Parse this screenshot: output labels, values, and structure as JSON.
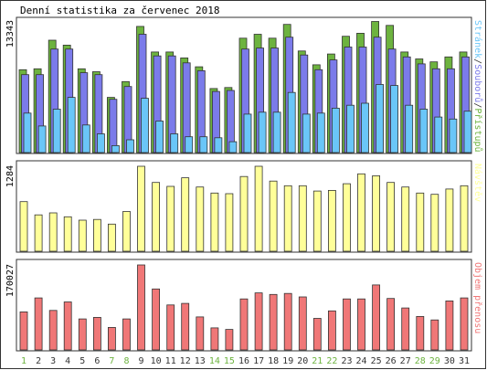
{
  "title": "Denní statistika za červenec 2018",
  "colors": {
    "hits": "#6db33f",
    "files": "#7b7bea",
    "pages": "#6ac6f8",
    "visits": "#ffff99",
    "kbytes": "#f07777",
    "weekend_label": "#6db33f",
    "weekday_label": "#333333"
  },
  "chart_data": [
    {
      "type": "bar",
      "panel": "top",
      "y_max_label": "13343",
      "ylim": [
        0,
        13343
      ],
      "categories": [
        "1",
        "2",
        "3",
        "4",
        "5",
        "6",
        "7",
        "8",
        "9",
        "10",
        "11",
        "12",
        "13",
        "14",
        "15",
        "16",
        "17",
        "18",
        "19",
        "20",
        "21",
        "22",
        "23",
        "24",
        "25",
        "26",
        "27",
        "28",
        "29",
        "30",
        "31"
      ],
      "weekend_days": [
        1,
        7,
        8,
        14,
        15,
        21,
        22,
        28,
        29
      ],
      "right_label": [
        {
          "text": "Stránek",
          "color_key": "pages"
        },
        {
          "text": "/",
          "color_key": "weekday_label"
        },
        {
          "text": "Souborů",
          "color_key": "files"
        },
        {
          "text": "/",
          "color_key": "weekday_label"
        },
        {
          "text": "Přístupů",
          "color_key": "hits"
        }
      ],
      "series": [
        {
          "name": "Přístupů",
          "color_key": "hits",
          "values": [
            8400,
            8500,
            11400,
            10900,
            8500,
            8200,
            5600,
            7200,
            12800,
            10200,
            10200,
            9600,
            8700,
            6500,
            6600,
            11600,
            12000,
            11600,
            13000,
            10300,
            8900,
            10000,
            11800,
            12100,
            13300,
            12900,
            10200,
            9500,
            9200,
            9700,
            10200
          ]
        },
        {
          "name": "Souborů",
          "color_key": "files",
          "values": [
            7900,
            7900,
            10500,
            10500,
            8100,
            7900,
            5400,
            6700,
            12000,
            9800,
            9800,
            9100,
            8300,
            6200,
            6300,
            10500,
            10600,
            10600,
            11700,
            9900,
            8400,
            9400,
            10700,
            10700,
            11700,
            10500,
            9700,
            9000,
            8500,
            8500,
            9700
          ]
        },
        {
          "name": "Stránek",
          "color_key": "pages",
          "values": [
            4000,
            2700,
            4400,
            5600,
            2800,
            1900,
            700,
            1300,
            5500,
            3200,
            1900,
            1600,
            1600,
            1500,
            1100,
            3900,
            4100,
            4100,
            6100,
            3900,
            4000,
            4500,
            4800,
            5000,
            6900,
            6800,
            4800,
            4400,
            3600,
            3400,
            4200
          ]
        }
      ]
    },
    {
      "type": "bar",
      "panel": "middle",
      "y_max_label": "1284",
      "ylim": [
        0,
        1284
      ],
      "right_label": [
        {
          "text": "Návštěv",
          "color_key": "visits"
        }
      ],
      "series": [
        {
          "name": "Návštěv",
          "color_key": "visits",
          "values": [
            750,
            550,
            580,
            520,
            470,
            480,
            410,
            600,
            1284,
            1040,
            980,
            1110,
            970,
            880,
            870,
            1130,
            1284,
            1060,
            990,
            990,
            910,
            920,
            1020,
            1170,
            1140,
            1040,
            970,
            880,
            860,
            940,
            990
          ]
        }
      ]
    },
    {
      "type": "bar",
      "panel": "bottom",
      "y_max_label": "170027",
      "ylim": [
        0,
        170027
      ],
      "right_label": [
        {
          "text": "Objem přenosu",
          "color_key": "kbytes"
        }
      ],
      "series": [
        {
          "name": "Objem přenosu",
          "color_key": "kbytes",
          "values": [
            76000,
            104000,
            79000,
            96000,
            62000,
            65000,
            45000,
            62000,
            170027,
            122000,
            90000,
            93000,
            66000,
            44000,
            41000,
            102000,
            114000,
            111000,
            113000,
            106000,
            63000,
            78000,
            102000,
            102000,
            130000,
            103000,
            84000,
            67000,
            60000,
            98000,
            104000
          ]
        }
      ]
    }
  ]
}
